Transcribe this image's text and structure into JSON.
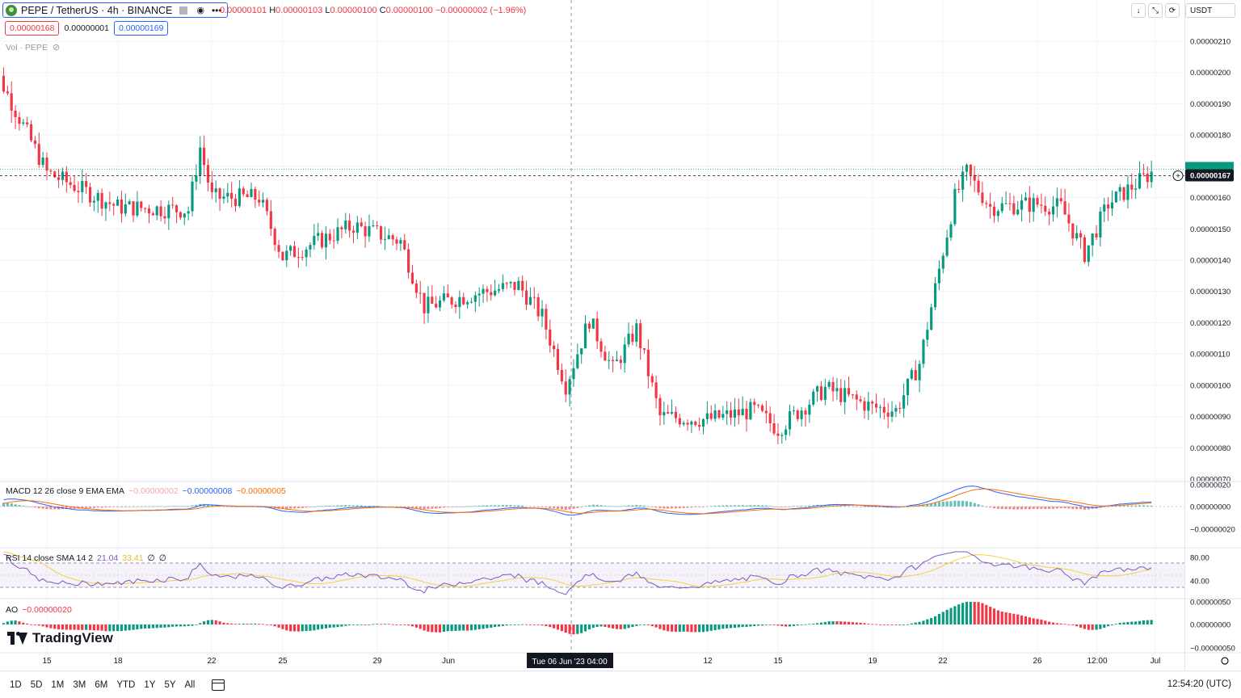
{
  "header": {
    "symbol": "PEPE / TetherUS · 4h · BINANCE",
    "ohlc": {
      "open_label": "O",
      "open": "0.00000101",
      "high_label": "H",
      "high": "0.00000103",
      "low_label": "L",
      "low": "0.00000100",
      "close_label": "C",
      "close": "0.00000100",
      "change": "−0.00000002 (−1.96%)"
    },
    "sell_price": "0.00000168",
    "spread": "0.00000001",
    "buy_price": "0.00000169",
    "volume_label": "Vol · PEPE"
  },
  "toolbar": {
    "currency": "USDT"
  },
  "price_axis": {
    "ticks": [
      "0.00000210",
      "0.00000200",
      "0.00000190",
      "0.00000180",
      "0.00000170",
      "0.00000160",
      "0.00000150",
      "0.00000140",
      "0.00000130",
      "0.00000120",
      "0.00000110",
      "0.00000100",
      "0.00000090",
      "0.00000080",
      "0.00000070"
    ],
    "current_price": "0.00000167"
  },
  "macd": {
    "label": "MACD 12 26 close 9 EMA EMA",
    "hist": "−0.00000002",
    "macd": "−0.00000008",
    "signal": "−0.00000005",
    "ticks": [
      "0.00000020",
      "0.00000000",
      "−0.00000020"
    ]
  },
  "rsi": {
    "label": "RSI 14 close SMA 14 2",
    "rsi": "21.04",
    "sma": "33.41",
    "x1": "∅",
    "x2": "∅",
    "ticks": [
      "80.00",
      "40.00"
    ]
  },
  "ao": {
    "label": "AO",
    "value": "−0.00000020",
    "ticks": [
      "0.00000050",
      "0.00000000",
      "−0.00000050"
    ]
  },
  "time_axis": {
    "labels": [
      "15",
      "18",
      "22",
      "25",
      "29",
      "Jun",
      "12",
      "15",
      "19",
      "22",
      "26",
      "12:00",
      "Jul"
    ],
    "crosshair_label": "Tue 06 Jun '23   04:00"
  },
  "bottom": {
    "ranges": [
      "1D",
      "5D",
      "1M",
      "3M",
      "6M",
      "YTD",
      "1Y",
      "5Y",
      "All"
    ],
    "clock": "12:54:20 (UTC)"
  },
  "branding": {
    "logo_text": "TradingView"
  },
  "colors": {
    "up": "#089981",
    "down": "#f23645",
    "accent": "#2962ff",
    "macd": "#2962ff",
    "signal": "#ff6d00",
    "rsi": "#7e57c2",
    "rsi_sma": "#f5d045"
  },
  "chart_data": {
    "type": "candlestick",
    "interval": "4h",
    "price_key_points": [
      {
        "date": "2023-05-12",
        "price": 1.65e-06
      },
      {
        "date": "2023-05-13",
        "price": 1.98e-06
      },
      {
        "date": "2023-05-15",
        "price": 1.68e-06
      },
      {
        "date": "2023-05-18",
        "price": 1.57e-06
      },
      {
        "date": "2023-05-21",
        "price": 1.56e-06
      },
      {
        "date": "2023-05-21",
        "price": 1.76e-06
      },
      {
        "date": "2023-05-22",
        "price": 1.6e-06
      },
      {
        "date": "2023-05-24",
        "price": 1.6e-06
      },
      {
        "date": "2023-05-25",
        "price": 1.41e-06
      },
      {
        "date": "2023-05-28",
        "price": 1.51e-06
      },
      {
        "date": "2023-05-30",
        "price": 1.46e-06
      },
      {
        "date": "2023-05-31",
        "price": 1.25e-06
      },
      {
        "date": "2023-06-02",
        "price": 1.29e-06
      },
      {
        "date": "2023-06-04",
        "price": 1.32e-06
      },
      {
        "date": "2023-06-05",
        "price": 1.22e-06
      },
      {
        "date": "2023-06-06",
        "price": 1e-06
      },
      {
        "date": "2023-06-07",
        "price": 1.21e-06
      },
      {
        "date": "2023-06-08",
        "price": 1.05e-06
      },
      {
        "date": "2023-06-09",
        "price": 1.18e-06
      },
      {
        "date": "2023-06-10",
        "price": 9e-07
      },
      {
        "date": "2023-06-12",
        "price": 8.9e-07
      },
      {
        "date": "2023-06-14",
        "price": 9.2e-07
      },
      {
        "date": "2023-06-15",
        "price": 8.6e-07
      },
      {
        "date": "2023-06-17",
        "price": 9.9e-07
      },
      {
        "date": "2023-06-19",
        "price": 9.3e-07
      },
      {
        "date": "2023-06-20",
        "price": 9.2e-07
      },
      {
        "date": "2023-06-21",
        "price": 1.07e-06
      },
      {
        "date": "2023-06-22",
        "price": 1.43e-06
      },
      {
        "date": "2023-06-22",
        "price": 1.6e-06
      },
      {
        "date": "2023-06-23",
        "price": 1.68e-06
      },
      {
        "date": "2023-06-24",
        "price": 1.57e-06
      },
      {
        "date": "2023-06-26",
        "price": 1.58e-06
      },
      {
        "date": "2023-06-27",
        "price": 1.57e-06
      },
      {
        "date": "2023-06-28",
        "price": 1.42e-06
      },
      {
        "date": "2023-06-29",
        "price": 1.58e-06
      },
      {
        "date": "2023-06-30",
        "price": 1.68e-06
      }
    ],
    "ylim": [
      7e-07,
      2.1e-06
    ],
    "grid": true
  }
}
